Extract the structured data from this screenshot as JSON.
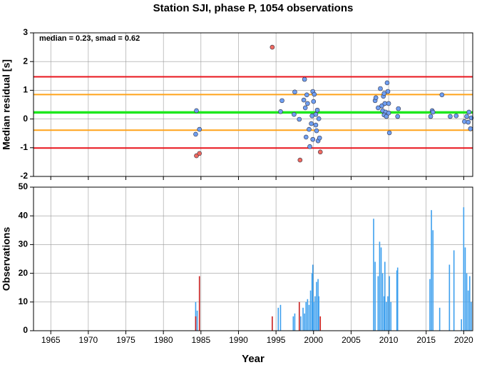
{
  "chart_data": [
    {
      "type": "scatter",
      "title": "Station SJI, phase P, 1054 observations",
      "annotation": "median = 0.23, smad = 0.62",
      "ylabel": "Median residual [s]",
      "xlim": [
        1962.7,
        2021.2
      ],
      "ylim": [
        -2,
        3
      ],
      "xticks": [
        1965,
        1970,
        1975,
        1980,
        1985,
        1990,
        1995,
        2000,
        2005,
        2010,
        2015,
        2020
      ],
      "yticks": [
        -2,
        -1,
        0,
        1,
        2,
        3
      ],
      "grid": true,
      "hlines": [
        {
          "value": 1.47,
          "color": "#e8141c"
        },
        {
          "value": 0.85,
          "color": "#ffa31a"
        },
        {
          "value": 0.23,
          "color": "#1ee81e"
        },
        {
          "value": -0.39,
          "color": "#ffa31a"
        },
        {
          "value": -1.01,
          "color": "#e8141c"
        }
      ],
      "series": [
        {
          "color": "#6f9ff2",
          "x": [
            1984.4,
            1984.3,
            1984.8,
            1995.6,
            1995.8,
            1997.5,
            1997.4,
            1998.1,
            1998.8,
            1998.7,
            1998.9,
            1999.1,
            1999.2,
            1999.0,
            1999.4,
            1999.5,
            1999.7,
            1999.8,
            1999.9,
            2000.0,
            2000.1,
            2000.3,
            2000.3,
            2000.4,
            2000.6,
            2000.8,
            2000.5,
            2000.7,
            1999.9,
            2008.2,
            2008.3,
            2008.6,
            2008.9,
            2009.1,
            2009.2,
            2009.3,
            2009.4,
            2009.5,
            2009.6,
            2009.4,
            2009.7,
            2009.8,
            2009.9,
            2010.0,
            2010.0,
            2010.1,
            2011.3,
            2011.2,
            2015.6,
            2015.8,
            2015.9,
            2017.1,
            2018.2,
            2019.0,
            2020.1,
            2020.4,
            2020.6,
            2020.7,
            2020.9,
            2021.0
          ],
          "values": [
            0.29,
            -0.53,
            -0.36,
            0.26,
            0.64,
            0.94,
            0.16,
            -0.01,
            1.38,
            0.66,
            0.39,
            0.84,
            0.54,
            -0.63,
            -0.36,
            -0.96,
            -0.16,
            0.11,
            0.96,
            0.61,
            0.86,
            0.16,
            -0.21,
            -0.41,
            -0.76,
            -0.66,
            0.31,
            0.01,
            -0.71,
            0.64,
            0.74,
            0.39,
            1.06,
            0.46,
            0.29,
            0.79,
            0.89,
            0.54,
            0.24,
            0.14,
            0.09,
            1.26,
            0.96,
            0.54,
            0.21,
            -0.48,
            0.36,
            0.09,
            0.09,
            0.29,
            0.24,
            0.84,
            0.09,
            0.11,
            -0.09,
            0.09,
            -0.11,
            0.24,
            -0.34,
            0.04
          ]
        },
        {
          "color": "#f06a60",
          "x": [
            1984.4,
            1984.8,
            1994.5,
            1998.2,
            2000.9
          ],
          "values": [
            -1.28,
            -1.2,
            2.5,
            -1.43,
            -1.15
          ]
        }
      ]
    },
    {
      "type": "bar",
      "ylabel": "Observations",
      "xlabel": "Year",
      "xlim": [
        1962.7,
        2021.2
      ],
      "ylim": [
        0,
        50
      ],
      "xticks": [
        1965,
        1970,
        1975,
        1980,
        1985,
        1990,
        1995,
        2000,
        2005,
        2010,
        2015,
        2020
      ],
      "yticks": [
        0,
        10,
        20,
        30,
        40,
        50
      ],
      "grid": true,
      "series": [
        {
          "color": "#3ea0ee",
          "x": [
            1984.3,
            1984.5,
            1995.3,
            1995.6,
            1997.3,
            1997.5,
            1998.3,
            1998.6,
            1998.8,
            1999.0,
            1999.2,
            1999.4,
            1999.6,
            1999.8,
            1999.9,
            2000.0,
            2000.2,
            2000.4,
            2000.6,
            2000.7,
            2008.0,
            2008.2,
            2008.6,
            2008.8,
            2009.0,
            2009.2,
            2009.4,
            2009.5,
            2009.7,
            2009.9,
            2010.1,
            2010.3,
            2011.1,
            2011.2,
            2015.5,
            2015.7,
            2015.9,
            2016.8,
            2018.1,
            2018.7,
            2019.7,
            2020.0,
            2020.2,
            2020.4,
            2020.6,
            2020.8,
            2021.0
          ],
          "values": [
            10,
            7,
            8,
            9,
            5,
            6,
            5,
            8,
            6,
            10,
            11,
            9,
            14,
            20,
            23,
            10,
            12,
            17,
            18,
            12,
            39,
            24,
            19,
            31,
            29,
            20,
            12,
            24,
            10,
            12,
            19,
            10,
            21,
            22,
            18,
            42,
            35,
            8,
            23,
            28,
            4,
            43,
            29,
            20,
            14,
            19,
            10
          ]
        },
        {
          "color": "#c81e1e",
          "x": [
            1984.3,
            1984.8,
            1994.5,
            1998.1,
            2000.9
          ],
          "values": [
            5,
            19,
            5,
            10,
            5
          ]
        }
      ]
    }
  ]
}
